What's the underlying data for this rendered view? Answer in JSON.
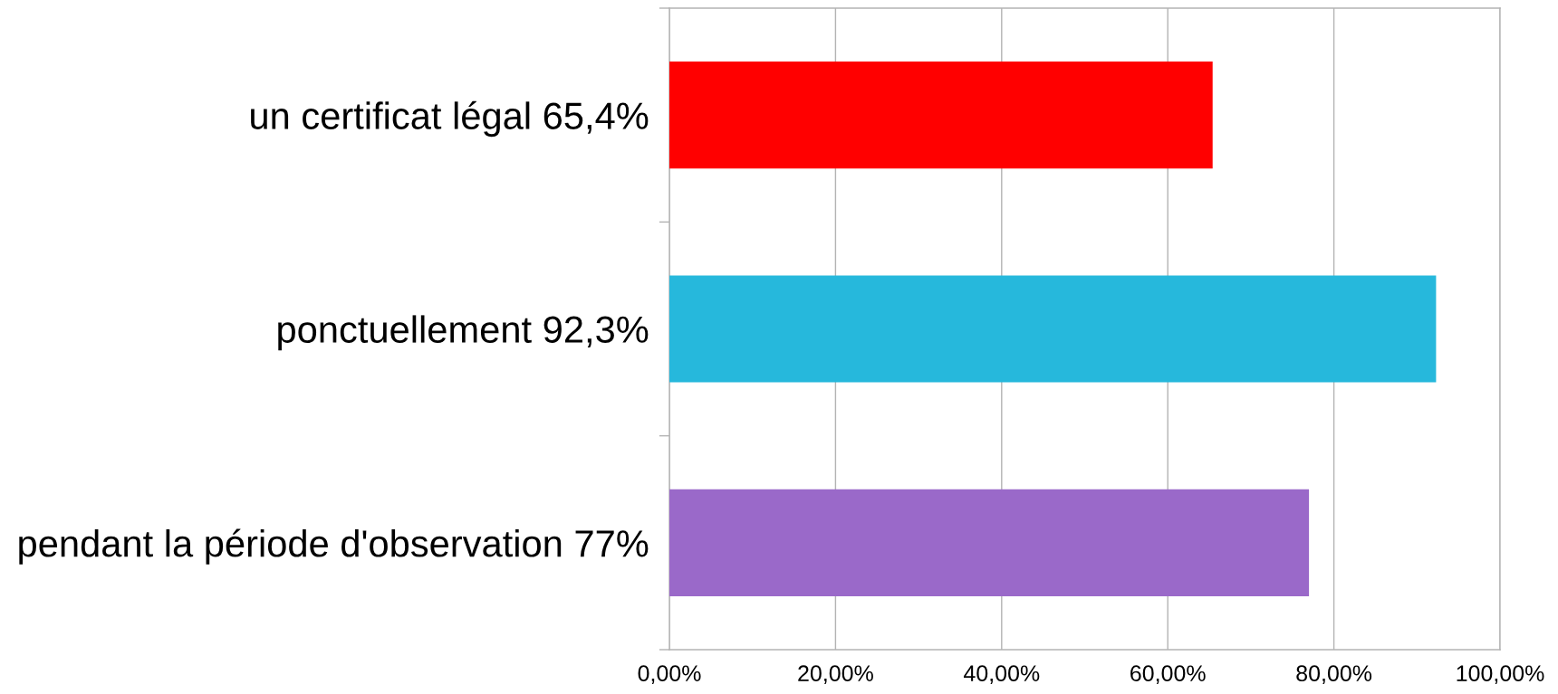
{
  "chart_data": {
    "type": "bar",
    "orientation": "horizontal",
    "categories": [
      "un certificat légal 65,4%",
      "ponctuellement 92,3%",
      "pendant la période d'observation 77%"
    ],
    "values": [
      65.4,
      92.3,
      77
    ],
    "colors": [
      "#ff0000",
      "#26b8dc",
      "#9a69c9"
    ],
    "xlim": [
      0,
      100
    ],
    "xticks": [
      {
        "value": 0,
        "label": "0,00%"
      },
      {
        "value": 20,
        "label": "20,00%"
      },
      {
        "value": 40,
        "label": "40,00%"
      },
      {
        "value": 60,
        "label": "60,00%"
      },
      {
        "value": 80,
        "label": "80,00%"
      },
      {
        "value": 100,
        "label": "100,00%"
      }
    ],
    "grid": "x",
    "legend": false
  }
}
